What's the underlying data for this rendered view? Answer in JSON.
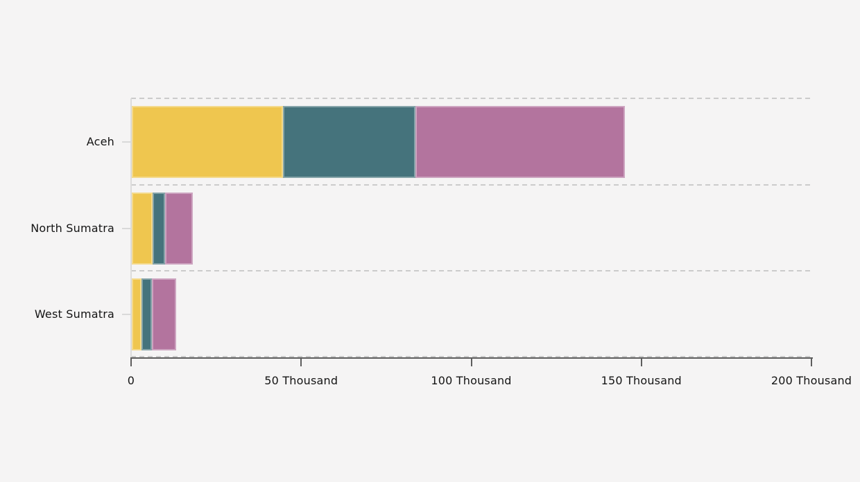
{
  "chart_data": {
    "type": "bar",
    "orientation": "horizontal",
    "stacked": true,
    "title": "",
    "xlabel": "",
    "ylabel": "",
    "categories": [
      "Aceh",
      "North Sumatra",
      "West Sumatra"
    ],
    "series": [
      {
        "name": "segment-1-yellow",
        "color": "#EFC64F",
        "values": [
          44400,
          6100,
          2900
        ]
      },
      {
        "name": "segment-2-teal",
        "color": "#45737C",
        "values": [
          39000,
          3600,
          3100
        ]
      },
      {
        "name": "segment-3-pink",
        "color": "#B3749E",
        "values": [
          61600,
          8200,
          7000
        ]
      }
    ],
    "xlim": [
      0,
      200000
    ],
    "x_tick_values": [
      0,
      50000,
      100000,
      150000,
      200000
    ],
    "x_tick_labels": [
      "0",
      "50 Thousand",
      "100 Thousand",
      "150 Thousand",
      "200 Thousand"
    ],
    "grid": "dashed horizontal separators above each category row and above axis",
    "legend": "none"
  },
  "colors": {
    "background": "#F5F4F4",
    "grid_dash": "#CBCBCB",
    "axis_dark": "#5D5D5D",
    "axis_light": "#DCDCDC",
    "text": "#141414"
  }
}
